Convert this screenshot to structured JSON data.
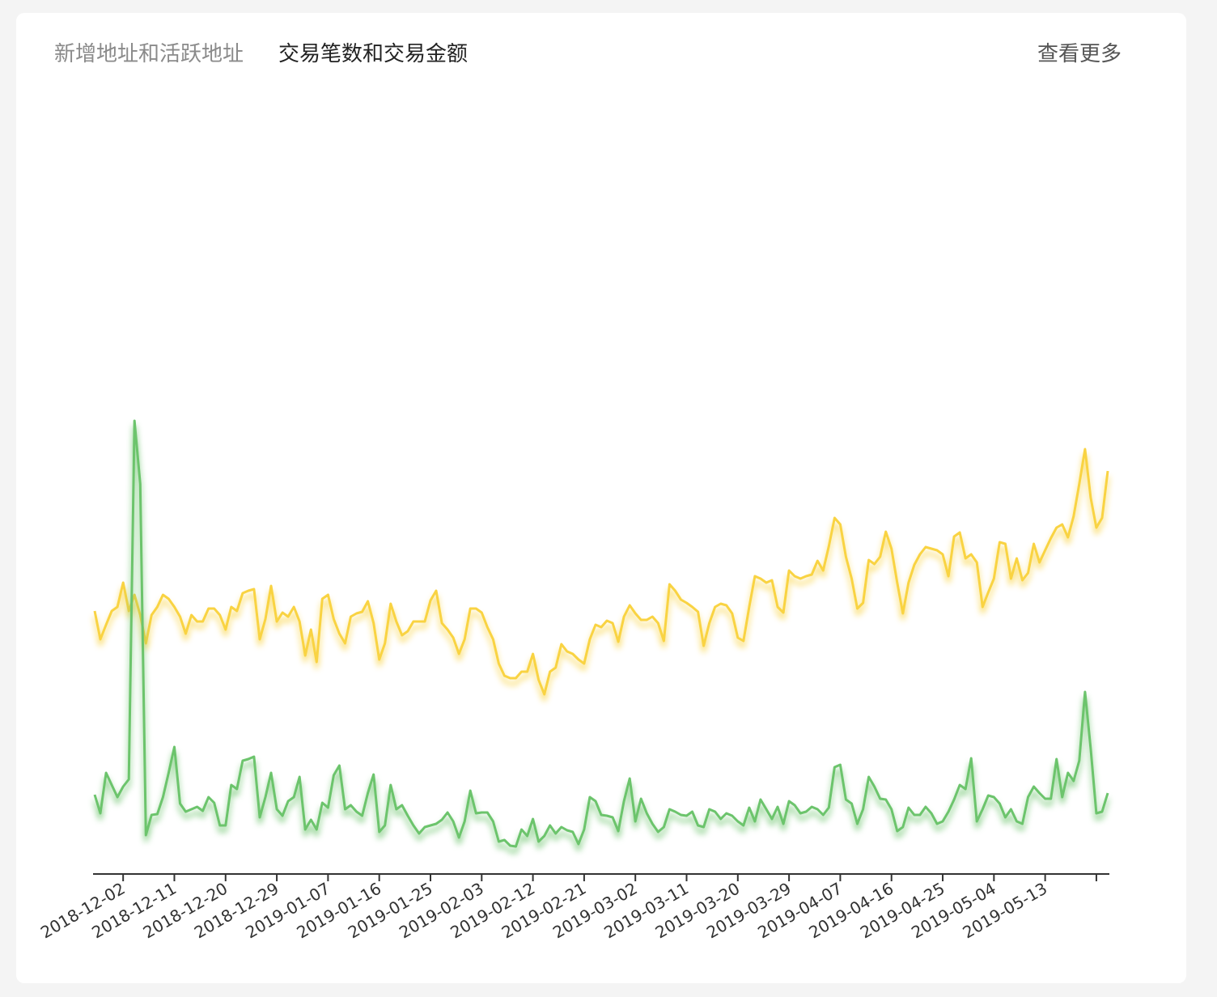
{
  "tabs": [
    "新增地址和活跃地址",
    "交易笔数和交易金额"
  ],
  "more": "查看更多",
  "chart_data": {
    "type": "line",
    "categories": [
      null,
      null,
      null,
      null,
      null,
      "2018-12-02",
      null,
      null,
      null,
      null,
      null,
      null,
      null,
      null,
      "2018-12-11",
      null,
      null,
      null,
      null,
      null,
      null,
      null,
      null,
      "2018-12-20",
      null,
      null,
      null,
      null,
      null,
      null,
      null,
      null,
      "2018-12-29",
      null,
      null,
      null,
      null,
      null,
      null,
      null,
      null,
      "2019-01-07",
      null,
      null,
      null,
      null,
      null,
      null,
      null,
      null,
      "2019-01-16",
      null,
      null,
      null,
      null,
      null,
      null,
      null,
      null,
      "2019-01-25",
      null,
      null,
      null,
      null,
      null,
      null,
      null,
      null,
      "2019-02-03",
      null,
      null,
      null,
      null,
      null,
      null,
      null,
      null,
      "2019-02-12",
      null,
      null,
      null,
      null,
      null,
      null,
      null,
      null,
      "2019-02-21",
      null,
      null,
      null,
      null,
      null,
      null,
      null,
      null,
      "2019-03-02",
      null,
      null,
      null,
      null,
      null,
      null,
      null,
      null,
      "2019-03-11",
      null,
      null,
      null,
      null,
      null,
      null,
      null,
      null,
      "2019-03-20",
      null,
      null,
      null,
      null,
      null,
      null,
      null,
      null,
      "2019-03-29",
      null,
      null,
      null,
      null,
      null,
      null,
      null,
      null,
      "2019-04-07",
      null,
      null,
      null,
      null,
      null,
      null,
      null,
      null,
      "2019-04-16",
      null,
      null,
      null,
      null,
      null,
      null,
      null,
      null,
      "2019-04-25",
      null,
      null,
      null,
      null,
      null,
      null,
      null,
      null,
      "2019-05-04",
      null,
      null,
      null,
      null,
      null,
      null,
      null,
      null,
      "2019-05-13",
      null,
      null,
      null,
      null,
      null,
      null,
      null,
      null,
      null,
      null,
      null
    ],
    "ylim": [
      0,
      95
    ],
    "series": [
      {
        "color": "#f9d342",
        "values": [
          32.5,
          29,
          30.8,
          32.5,
          33,
          36,
          32.5,
          34.5,
          32,
          28.5,
          32,
          33,
          34.5,
          34,
          33,
          31.8,
          29.7,
          32,
          31.2,
          31.2,
          32.8,
          32.8,
          32,
          30.2,
          33,
          32.5,
          34.7,
          35,
          35.2,
          29,
          31.5,
          35.6,
          31.2,
          32.3,
          31.8,
          33,
          31.2,
          27,
          30.2,
          26.2,
          34,
          34.5,
          31.5,
          29.7,
          28.5,
          31.8,
          32.2,
          32.4,
          33.7,
          31,
          26.5,
          28.5,
          33.4,
          31.2,
          29.5,
          30,
          31.2,
          31.2,
          31.2,
          33.8,
          35,
          31,
          30.2,
          29.2,
          27.2,
          29,
          32.8,
          32.8,
          32.3,
          30.5,
          29,
          26,
          24.5,
          24.2,
          24.2,
          25,
          25,
          27.2,
          24,
          22.2,
          25,
          25.5,
          28.4,
          27.5,
          27.2,
          26.5,
          26,
          29,
          30.8,
          30.5,
          31.3,
          31,
          28.7,
          31.8,
          33.2,
          32.2,
          31.4,
          31.4,
          31.8,
          31,
          28.8,
          35.8,
          35,
          33.9,
          33.5,
          33,
          32.4,
          28.2,
          31,
          33,
          33.4,
          33.2,
          32.2,
          29.2,
          28.8,
          33,
          36.8,
          36.5,
          36,
          36.3,
          33,
          32.3,
          37.5,
          36.8,
          36.5,
          36.8,
          37,
          38.7,
          37.5,
          40.5,
          44,
          43.2,
          39.2,
          36.5,
          32.8,
          33.5,
          38.8,
          38.3,
          39.2,
          42.3,
          40.2,
          36,
          32.2,
          36,
          38.2,
          39.5,
          40.4,
          40.2,
          40,
          39.5,
          36.8,
          41.7,
          42.2,
          39,
          39.5,
          38.5,
          33,
          34.8,
          36.5,
          41,
          40.8,
          36.5,
          39,
          36.3,
          37.2,
          40.8,
          38.5,
          40,
          41.5,
          42.8,
          43.2,
          41.6,
          44.2,
          48.2,
          52.5,
          46.5,
          42.8,
          44,
          49.8
        ]
      },
      {
        "color": "#6cc46c",
        "values": [
          9.8,
          7.5,
          12.5,
          11,
          9.5,
          10.8,
          11.7,
          56,
          48.2,
          4.8,
          7.3,
          7.4,
          9.5,
          12.5,
          15.7,
          8.7,
          7.7,
          8,
          8.3,
          7.8,
          9.5,
          8.8,
          6,
          6,
          11,
          10.5,
          14,
          14.2,
          14.5,
          7,
          9.5,
          12.5,
          8,
          7.2,
          9,
          9.5,
          12,
          5.5,
          6.7,
          5.5,
          8.8,
          8.2,
          12.2,
          13.4,
          8,
          8.5,
          7.7,
          7.2,
          10,
          12.3,
          5.2,
          6,
          11,
          8,
          8.5,
          7.2,
          6,
          5,
          5.8,
          6,
          6.2,
          6.7,
          7.6,
          6.5,
          4.5,
          6.5,
          10.3,
          7.5,
          7.6,
          7.6,
          6.5,
          4,
          4.2,
          3.5,
          3.4,
          5.5,
          4.7,
          6.8,
          4,
          4.7,
          6,
          5,
          5.8,
          5.4,
          5.2,
          3.7,
          5.5,
          9.5,
          9,
          7.3,
          7.2,
          7,
          5.3,
          9,
          11.8,
          6.5,
          9.3,
          7.5,
          6.2,
          5.2,
          5.8,
          8,
          7.7,
          7.3,
          7.2,
          7.7,
          6,
          5.8,
          8,
          7.7,
          6.8,
          7.5,
          7.2,
          6.5,
          6,
          8.2,
          6.5,
          9.2,
          8,
          6.8,
          8.3,
          6.2,
          9,
          8.5,
          7.5,
          7.7,
          8.3,
          8,
          7.3,
          8.2,
          13.2,
          13.5,
          9.2,
          8.7,
          6.2,
          8,
          12,
          10.8,
          9.3,
          9.2,
          8,
          5.3,
          5.8,
          8.2,
          7.3,
          7.3,
          8.3,
          7.5,
          6.2,
          6.5,
          7.7,
          9.2,
          11,
          10.5,
          14.3,
          6.5,
          8,
          9.7,
          9.5,
          8.7,
          7,
          8,
          6.5,
          6.2,
          9.5,
          10.8,
          10,
          9.3,
          9.3,
          14.2,
          9.5,
          12.5,
          11.5,
          14,
          22.5,
          15.5,
          7.5,
          7.7,
          10
        ]
      }
    ]
  }
}
